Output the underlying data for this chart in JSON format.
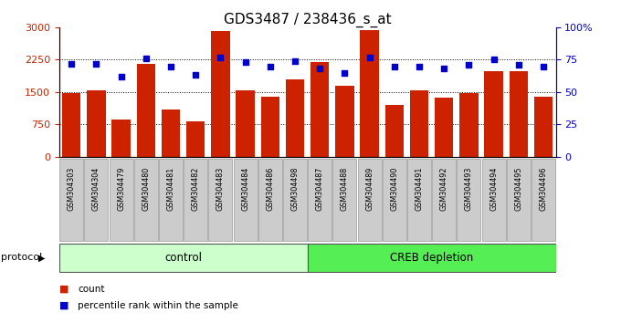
{
  "title": "GDS3487 / 238436_s_at",
  "samples": [
    "GSM304303",
    "GSM304304",
    "GSM304479",
    "GSM304480",
    "GSM304481",
    "GSM304482",
    "GSM304483",
    "GSM304484",
    "GSM304486",
    "GSM304498",
    "GSM304487",
    "GSM304488",
    "GSM304489",
    "GSM304490",
    "GSM304491",
    "GSM304492",
    "GSM304493",
    "GSM304494",
    "GSM304495",
    "GSM304496"
  ],
  "counts": [
    1480,
    1530,
    870,
    2150,
    1100,
    810,
    2920,
    1550,
    1400,
    1800,
    2200,
    1650,
    2930,
    1200,
    1530,
    1380,
    1470,
    1990,
    1980,
    1390
  ],
  "percentiles": [
    72,
    72,
    62,
    76,
    70,
    63,
    77,
    73,
    70,
    74,
    68,
    65,
    77,
    70,
    70,
    68,
    71,
    75,
    71,
    70
  ],
  "bar_color": "#cc2200",
  "dot_color": "#0000cc",
  "left_ylim": [
    0,
    3000
  ],
  "right_ylim": [
    0,
    100
  ],
  "left_yticks": [
    0,
    750,
    1500,
    2250,
    3000
  ],
  "right_yticks": [
    0,
    25,
    50,
    75,
    100
  ],
  "right_yticklabels": [
    "0",
    "25",
    "50",
    "75",
    "100%"
  ],
  "grid_values": [
    750,
    1500,
    2250
  ],
  "n_control": 10,
  "control_label": "control",
  "creb_label": "CREB depletion",
  "protocol_label": "protocol",
  "legend_count": "count",
  "legend_pct": "percentile rank within the sample",
  "bg_color": "#ffffff",
  "plot_bg_color": "#ffffff",
  "control_color": "#ccffcc",
  "creb_color": "#55ee55",
  "tick_label_bg": "#cccccc",
  "tick_label_edge": "#999999",
  "title_fontsize": 11,
  "bar_width": 0.75
}
